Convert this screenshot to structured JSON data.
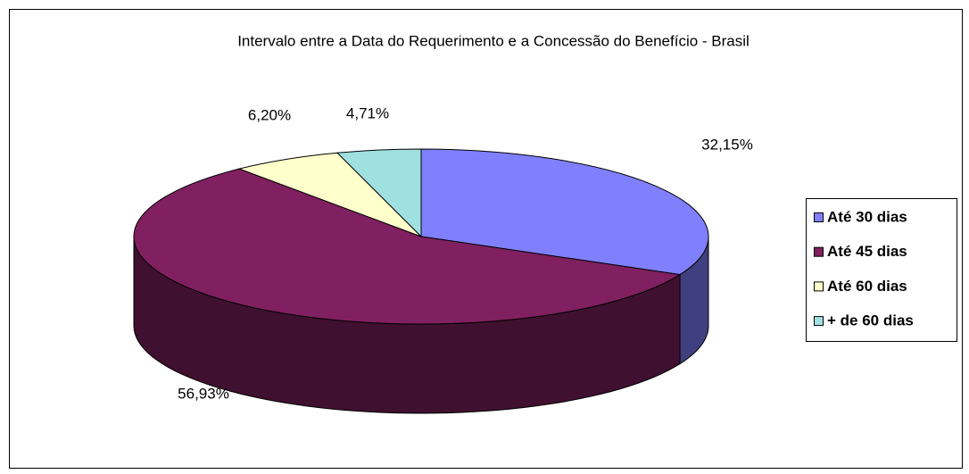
{
  "chart_data": {
    "type": "pie",
    "title": "Intervalo entre a Data do Requerimento e a Concessão do Benefício  - Brasil",
    "categories": [
      "Até 30 dias",
      "Até 45 dias",
      "Até 60 dias",
      "+ de 60 dias"
    ],
    "values": [
      32.15,
      56.93,
      6.2,
      4.71
    ],
    "value_labels": [
      "32,15%",
      "56,93%",
      "6,20%",
      "4,71%"
    ],
    "colors": [
      "#8080ff",
      "#802060",
      "#ffffcc",
      "#a0e0e0"
    ],
    "legend": "right"
  }
}
